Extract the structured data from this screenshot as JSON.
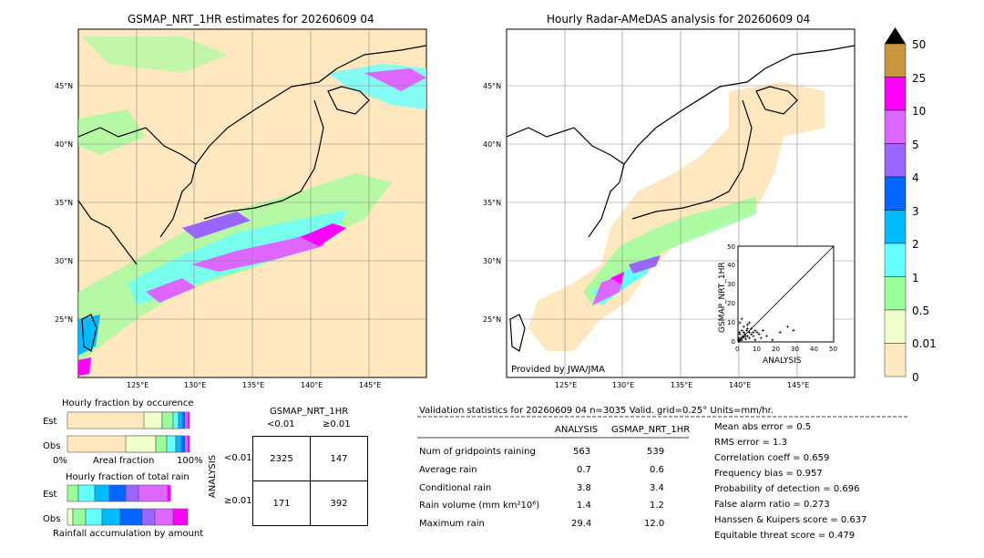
{
  "left_map": {
    "title": "GSMAP_NRT_1HR estimates for 20260609 04",
    "lat_labels": [
      "45°N",
      "40°N",
      "35°N",
      "30°N",
      "25°N"
    ],
    "lon_labels": [
      "125°E",
      "130°E",
      "135°E",
      "140°E",
      "145°E"
    ]
  },
  "right_map": {
    "title": "Hourly Radar-AMeDAS analysis for 20260609 04",
    "lat_labels": [
      "45°N",
      "40°N",
      "35°N",
      "30°N",
      "25°N"
    ],
    "lon_labels": [
      "125°E",
      "130°E",
      "135°E",
      "140°E",
      "145°E"
    ],
    "credit": "Provided by JWA/JMA"
  },
  "colorbar": {
    "labels": [
      "50",
      "25",
      "10",
      "5",
      "4",
      "3",
      "2",
      "1",
      "0.5",
      "0.01",
      "0"
    ],
    "colors": [
      "#c8963c",
      "#ff00ff",
      "#dd66ff",
      "#9966ff",
      "#0066ff",
      "#00bbff",
      "#66ffff",
      "#99ff99",
      "#eeffcc",
      "#ffe8c0"
    ]
  },
  "scatter": {
    "xlabel": "ANALYSIS",
    "ylabel": "GSMAP_NRT_1HR",
    "ticks": [
      "0",
      "10",
      "20",
      "30",
      "40",
      "50"
    ]
  },
  "fraction_occurrence": {
    "title": "Hourly fraction by occurence",
    "rows": [
      "Est",
      "Obs"
    ],
    "axis_left": "0%",
    "axis_mid": "Areal fraction",
    "axis_right": "100%"
  },
  "fraction_total": {
    "title": "Hourly fraction of total rain",
    "rows": [
      "Est",
      "Obs"
    ],
    "footer": "Rainfall accumulation by amount"
  },
  "contingency": {
    "title": "GSMAP_NRT_1HR",
    "col_labels": [
      "<0.01",
      "≥0.01"
    ],
    "row_title": "ANALYSIS",
    "row_labels": [
      "<0.01",
      "≥0.01"
    ],
    "cells": [
      [
        "2325",
        "147"
      ],
      [
        "171",
        "392"
      ]
    ]
  },
  "validation": {
    "header": "Validation statistics for 20260609 04  n=3035 Valid. grid=0.25° Units=mm/hr.",
    "col_analysis": "ANALYSIS",
    "col_gsmap": "GSMAP_NRT_1HR",
    "rows": [
      {
        "label": "Num of gridpoints raining",
        "analysis": "563",
        "gsmap": "539"
      },
      {
        "label": "Average rain",
        "analysis": "0.7",
        "gsmap": "0.6"
      },
      {
        "label": "Conditional rain",
        "analysis": "3.8",
        "gsmap": "3.4"
      },
      {
        "label": "Rain volume (mm km²10⁶)",
        "analysis": "1.4",
        "gsmap": "1.2"
      },
      {
        "label": "Maximum rain",
        "analysis": "29.4",
        "gsmap": "12.0"
      }
    ],
    "scores": [
      "Mean abs error =    0.5",
      "RMS error =    1.3",
      "Correlation coeff =  0.659",
      "Frequency bias =  0.957",
      "Probability of detection =  0.696",
      "False alarm ratio =  0.273",
      "Hanssen & Kuipers score =  0.637",
      "Equitable threat score =  0.479"
    ]
  },
  "chart_data": {
    "type": "scatter",
    "xlabel": "ANALYSIS",
    "ylabel": "GSMAP_NRT_1HR",
    "xlim": [
      0,
      50
    ],
    "ylim": [
      0,
      50
    ],
    "points": [
      [
        0.5,
        0.3
      ],
      [
        1,
        0.8
      ],
      [
        1.5,
        2
      ],
      [
        2,
        1
      ],
      [
        2.5,
        3
      ],
      [
        3,
        2.5
      ],
      [
        1,
        4
      ],
      [
        4,
        1.5
      ],
      [
        3.5,
        4
      ],
      [
        5,
        3
      ],
      [
        2,
        6
      ],
      [
        6,
        2
      ],
      [
        4.5,
        6
      ],
      [
        7,
        4
      ],
      [
        5,
        7
      ],
      [
        8,
        3
      ],
      [
        3,
        8
      ],
      [
        9,
        1
      ],
      [
        10,
        5
      ],
      [
        12,
        2
      ],
      [
        15,
        3
      ],
      [
        18,
        1
      ],
      [
        22,
        5
      ],
      [
        26,
        8
      ],
      [
        29,
        6
      ],
      [
        1,
        10
      ],
      [
        2,
        12
      ],
      [
        5,
        9
      ],
      [
        6,
        10
      ],
      [
        0.8,
        5
      ],
      [
        0.3,
        1.2
      ],
      [
        7,
        7
      ],
      [
        9,
        6
      ],
      [
        11,
        4
      ],
      [
        13,
        6
      ],
      [
        4,
        3
      ],
      [
        3,
        5
      ],
      [
        6,
        5
      ],
      [
        8,
        5
      ],
      [
        2,
        2
      ],
      [
        1,
        1
      ],
      [
        0.5,
        2
      ]
    ]
  }
}
